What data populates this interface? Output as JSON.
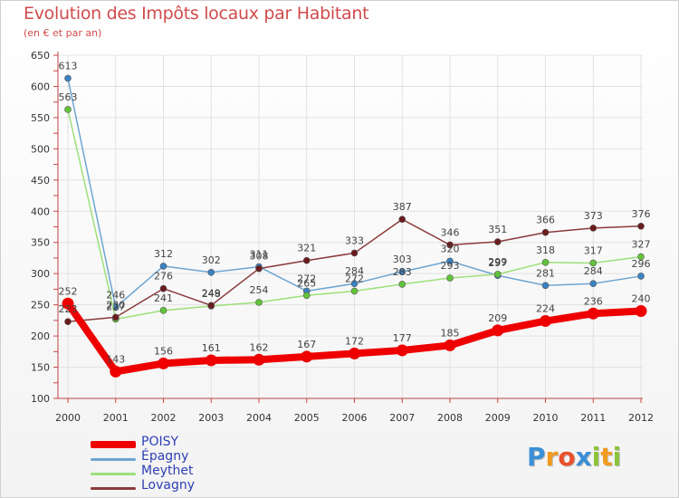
{
  "title": "Evolution des Impôts locaux par Habitant",
  "subtitle": "(en € et par an)",
  "logo": {
    "text": "Proxiti",
    "letters": [
      {
        "ch": "P",
        "color": "#3a8fd6"
      },
      {
        "ch": "r",
        "color": "#f29a1f"
      },
      {
        "ch": "o",
        "color": "#e8512c"
      },
      {
        "ch": "x",
        "color": "#3a8fd6"
      },
      {
        "ch": "i",
        "color": "#8bc33a"
      },
      {
        "ch": "t",
        "color": "#f29a1f"
      },
      {
        "ch": "i",
        "color": "#8bc33a"
      }
    ]
  },
  "chart_data": {
    "type": "line",
    "title": "Evolution des Impôts locaux par Habitant",
    "subtitle": "(en € et par an)",
    "xlabel": "",
    "ylabel": "",
    "ylim": [
      100,
      650
    ],
    "yticks": [
      100,
      150,
      200,
      250,
      300,
      350,
      400,
      450,
      500,
      550,
      600,
      650
    ],
    "categories": [
      "2000",
      "2001",
      "2002",
      "2003",
      "2004",
      "2005",
      "2006",
      "2007",
      "2008",
      "2009",
      "2010",
      "2011",
      "2012"
    ],
    "legend_position": "bottom-left",
    "series": [
      {
        "name": "POISY",
        "color": "#ee0000",
        "marker": "#ee0000",
        "width": "thick",
        "values": [
          252,
          143,
          156,
          161,
          162,
          167,
          172,
          177,
          185,
          209,
          224,
          236,
          240
        ],
        "labels": [
          "252",
          "143",
          "156",
          "161",
          "162",
          "167",
          "172",
          "177",
          "185",
          "209",
          "224",
          "236",
          "240"
        ]
      },
      {
        "name": "Épagny",
        "color": "#6ea5d2",
        "marker": "#3b82c4",
        "width": "thin",
        "values": [
          613,
          246,
          312,
          302,
          311,
          272,
          284,
          303,
          320,
          297,
          281,
          284,
          296
        ],
        "labels": [
          "613",
          "246",
          "312",
          "302",
          "311",
          "272",
          "284",
          "303",
          "320",
          "297",
          "281",
          "284",
          "296"
        ]
      },
      {
        "name": "Meythet",
        "color": "#9de07a",
        "marker": "#62c43a",
        "width": "thin",
        "values": [
          563,
          227,
          241,
          248,
          254,
          265,
          272,
          283,
          293,
          299,
          318,
          317,
          327
        ],
        "labels": [
          "563",
          "227",
          "241",
          "248",
          "254",
          "265",
          "272",
          "283",
          "293",
          "299",
          "318",
          "317",
          "327"
        ]
      },
      {
        "name": "Lovagny",
        "color": "#8b3a3a",
        "marker": "#6b1c1c",
        "width": "thin",
        "values": [
          223,
          230,
          276,
          249,
          308,
          321,
          333,
          387,
          346,
          351,
          366,
          373,
          376
        ],
        "labels": [
          "223",
          "230",
          "276",
          "249",
          "308",
          "321",
          "333",
          "387",
          "346",
          "351",
          "366",
          "373",
          "376"
        ]
      }
    ]
  }
}
